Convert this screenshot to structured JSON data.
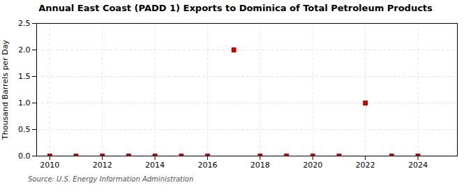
{
  "chart_data": {
    "type": "scatter",
    "title": "Annual East Coast (PADD 1) Exports to Dominica of Total Petroleum Products",
    "ylabel": "Thousand Barrels per Day",
    "source": "Source: U.S. Energy Information Administration",
    "x": [
      2010,
      2011,
      2012,
      2013,
      2014,
      2015,
      2016,
      2017,
      2018,
      2019,
      2020,
      2021,
      2022,
      2023,
      2024
    ],
    "values": [
      0.0,
      0.0,
      0.0,
      0.0,
      0.0,
      0.0,
      0.0,
      2.0,
      0.0,
      0.0,
      0.0,
      0.0,
      1.0,
      0.0,
      0.0
    ],
    "color": "#cc0000",
    "marker": "square",
    "xlim": [
      2009.5,
      2025.5
    ],
    "ylim": [
      0.0,
      2.5
    ],
    "xticks": [
      2010,
      2012,
      2014,
      2016,
      2018,
      2020,
      2022,
      2024
    ],
    "yticks": [
      {
        "value": 0.0,
        "label": "0.0"
      },
      0.5,
      {
        "value": 1.0,
        "label": "1.0"
      },
      1.5,
      {
        "value": 2.0,
        "label": "2.0"
      },
      2.5
    ],
    "grid": true
  }
}
